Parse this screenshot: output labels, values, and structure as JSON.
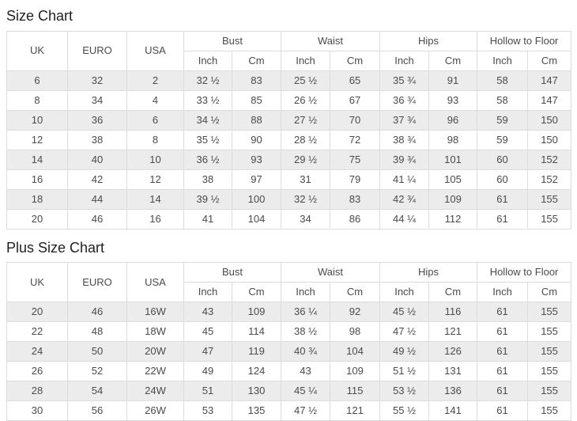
{
  "header": {
    "uk": "UK",
    "euro": "EURO",
    "usa": "USA",
    "groups": [
      "Bust",
      "Waist",
      "Hips",
      "Hollow to Floor"
    ],
    "sub_inch": "Inch",
    "sub_cm": "Cm"
  },
  "column_keys": [
    "uk",
    "euro",
    "usa",
    "bust-inch",
    "bust-cm",
    "waist-inch",
    "waist-cm",
    "hips-inch",
    "hips-cm",
    "hollow-inch",
    "hollow-cm"
  ],
  "colors": {
    "stripe": "#ececec",
    "border": "#dcdcdc",
    "text": "#4a4a4a",
    "title": "#1f1f1f"
  },
  "sections": [
    {
      "title": "Size Chart",
      "rows": [
        [
          "6",
          "32",
          "2",
          "32 ½",
          "83",
          "25 ½",
          "65",
          "35 ¾",
          "91",
          "58",
          "147"
        ],
        [
          "8",
          "34",
          "4",
          "33 ½",
          "85",
          "26 ½",
          "67",
          "36 ¾",
          "93",
          "58",
          "147"
        ],
        [
          "10",
          "36",
          "6",
          "34 ½",
          "88",
          "27 ½",
          "70",
          "37 ¾",
          "96",
          "59",
          "150"
        ],
        [
          "12",
          "38",
          "8",
          "35 ½",
          "90",
          "28 ½",
          "72",
          "38 ¾",
          "98",
          "59",
          "150"
        ],
        [
          "14",
          "40",
          "10",
          "36 ½",
          "93",
          "29 ½",
          "75",
          "39 ¾",
          "101",
          "60",
          "152"
        ],
        [
          "16",
          "42",
          "12",
          "38",
          "97",
          "31",
          "79",
          "41 ¼",
          "105",
          "60",
          "152"
        ],
        [
          "18",
          "44",
          "14",
          "39 ½",
          "100",
          "32 ½",
          "83",
          "42 ¾",
          "109",
          "61",
          "155"
        ],
        [
          "20",
          "46",
          "16",
          "41",
          "104",
          "34",
          "86",
          "44 ¼",
          "112",
          "61",
          "155"
        ]
      ]
    },
    {
      "title": "Plus Size Chart",
      "rows": [
        [
          "20",
          "46",
          "16W",
          "43",
          "109",
          "36 ¼",
          "92",
          "45 ½",
          "116",
          "61",
          "155"
        ],
        [
          "22",
          "48",
          "18W",
          "45",
          "114",
          "38 ½",
          "98",
          "47 ½",
          "121",
          "61",
          "155"
        ],
        [
          "24",
          "50",
          "20W",
          "47",
          "119",
          "40 ¾",
          "104",
          "49 ½",
          "126",
          "61",
          "155"
        ],
        [
          "26",
          "52",
          "22W",
          "49",
          "124",
          "43",
          "109",
          "51 ½",
          "131",
          "61",
          "155"
        ],
        [
          "28",
          "54",
          "24W",
          "51",
          "130",
          "45 ¼",
          "115",
          "53 ½",
          "136",
          "61",
          "155"
        ],
        [
          "30",
          "56",
          "26W",
          "53",
          "135",
          "47 ½",
          "121",
          "55 ½",
          "141",
          "61",
          "155"
        ]
      ]
    }
  ]
}
